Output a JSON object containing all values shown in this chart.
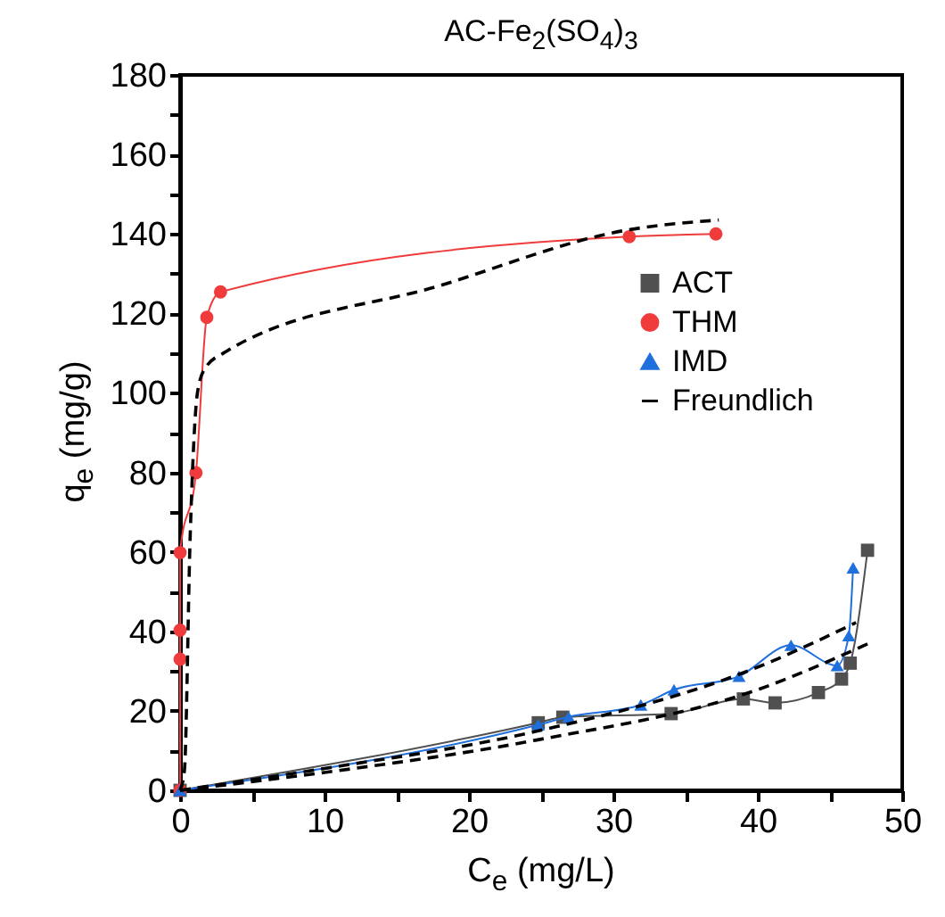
{
  "chart_data": {
    "type": "line",
    "title": "AC-Fe$_{2}$(SO$_{4}$)$_{3}$",
    "xlabel": "C$_{e}$ (mg/L)",
    "ylabel": "q$_{e}$ (mg/g)",
    "xlim": [
      0,
      50
    ],
    "xticks": [
      0,
      {
        "value": 5,
        "label": null
      },
      10,
      {
        "value": 15,
        "label": null
      },
      20,
      {
        "value": 25,
        "label": null
      },
      30,
      {
        "value": 35,
        "label": null
      },
      40,
      {
        "value": 45,
        "label": null
      },
      50
    ],
    "ylim": [
      0,
      180
    ],
    "yticks": [
      0,
      {
        "value": 10,
        "label": null
      },
      20,
      {
        "value": 30,
        "label": null
      },
      40,
      {
        "value": 50,
        "label": null
      },
      60,
      {
        "value": 70,
        "label": null
      },
      80,
      {
        "value": 90,
        "label": null
      },
      100,
      {
        "value": 110,
        "label": null
      },
      120,
      {
        "value": 130,
        "label": null
      },
      140,
      {
        "value": 150,
        "label": null
      },
      160,
      {
        "value": 170,
        "label": null
      },
      180
    ],
    "grid": false,
    "legend": "top right",
    "series": [
      {
        "name": "ACT",
        "color": "#505050",
        "marker": "square",
        "line_style": "solid",
        "x": [
          0,
          24.8,
          26.5,
          34,
          39,
          41.2,
          44.2,
          45.8,
          46.4,
          47.6
        ],
        "values": [
          0,
          17,
          18.4,
          19.3,
          23,
          22,
          24.6,
          28,
          32,
          60.4
        ]
      },
      {
        "name": "THM",
        "color": "#ef3b3b",
        "marker": "circle",
        "line_style": "solid",
        "x": [
          0,
          0,
          0,
          0,
          1.1,
          1.85,
          2.8,
          31.1,
          37.1
        ],
        "values": [
          0,
          33,
          40.3,
          59.8,
          79.9,
          119,
          125.4,
          139.3,
          140
        ]
      },
      {
        "name": "IMD",
        "color": "#1f6fdc",
        "marker": "triangle",
        "line_style": "solid",
        "x": [
          0,
          24.8,
          26.9,
          31.9,
          34.2,
          38.7,
          42.3,
          45.5,
          46.3,
          46.6
        ],
        "values": [
          0,
          16.5,
          18.5,
          21.5,
          25.3,
          28.7,
          36.5,
          31.4,
          38.9,
          56
        ]
      },
      {
        "name": "Freundlich",
        "color": "#000000",
        "marker": "none",
        "line_style": "dashed",
        "x": [
          0,
          0.3,
          0.7,
          1.2,
          1.7,
          3,
          18,
          31,
          37.3
        ],
        "values": [
          0,
          5,
          64,
          100,
          106,
          110,
          127,
          141,
          143.5
        ]
      },
      {
        "color": "#000000",
        "marker": "none",
        "line_style": "dashed",
        "x": [
          0,
          10,
          24.6,
          40.2,
          46.8
        ],
        "values": [
          0,
          5.5,
          14.8,
          31.3,
          42.2
        ]
      },
      {
        "color": "#000000",
        "marker": "none",
        "line_style": "dashed",
        "x": [
          0,
          10,
          24.6,
          40.2,
          47.7
        ],
        "values": [
          0,
          4.5,
          12.6,
          25.6,
          37
        ]
      }
    ]
  }
}
